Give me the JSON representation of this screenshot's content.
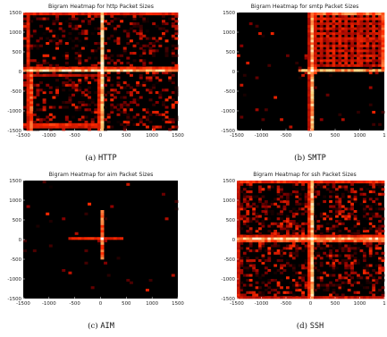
{
  "chart_data": [
    {
      "type": "heatmap",
      "title": "Bigram Heatmap for http Packet Sizes",
      "caption_prefix": "(a)",
      "caption_label": "HTTP",
      "x_ticks": [
        "-1500",
        "-1000",
        "-500",
        "0",
        "500",
        "1000",
        "1500"
      ],
      "y_ticks": [
        "1500",
        "1000",
        "500",
        "0",
        "-500",
        "-1000",
        "-1500"
      ],
      "xlim": [
        -1500,
        1500
      ],
      "ylim": [
        -1500,
        1500
      ],
      "colors": {
        "background": "#000000",
        "low": "#8a0000",
        "mid": "#ff2a00",
        "high": "#ffd27a",
        "peak": "#ffffff"
      },
      "lines": [
        {
          "orient": "v",
          "at": 0,
          "from": -1500,
          "to": 1500,
          "intensity": 0.95
        },
        {
          "orient": "v",
          "at": 40,
          "from": -1500,
          "to": 1500,
          "intensity": 0.7
        },
        {
          "orient": "h",
          "at": 60,
          "from": -1500,
          "to": 1500,
          "intensity": 0.95
        },
        {
          "orient": "h",
          "at": 110,
          "from": -1500,
          "to": 1500,
          "intensity": 0.6
        },
        {
          "orient": "h",
          "at": 1450,
          "from": -1450,
          "to": 1450,
          "intensity": 0.55
        },
        {
          "orient": "v",
          "at": -1420,
          "from": -1450,
          "to": 1450,
          "intensity": 0.55
        },
        {
          "orient": "v",
          "at": -1320,
          "from": -1450,
          "to": 100,
          "intensity": 0.7
        },
        {
          "orient": "h",
          "at": -1350,
          "from": -1450,
          "to": 0,
          "intensity": 0.6
        },
        {
          "orient": "h",
          "at": -1430,
          "from": -1450,
          "to": 0,
          "intensity": 0.5
        },
        {
          "orient": "v",
          "at": -60,
          "from": -1450,
          "to": 100,
          "intensity": 0.55
        },
        {
          "orient": "h",
          "at": -100,
          "from": -1450,
          "to": 0,
          "intensity": 0.4
        }
      ],
      "hotspots": [
        {
          "x": 0,
          "y": 60,
          "intensity": 1.0,
          "r": 70
        },
        {
          "x": 520,
          "y": 60,
          "intensity": 0.55,
          "r": 40
        },
        {
          "x": -60,
          "y": 1450,
          "intensity": 0.5,
          "r": 40
        },
        {
          "x": -1320,
          "y": -1350,
          "intensity": 0.6,
          "r": 40
        }
      ],
      "noise": 0.38
    },
    {
      "type": "heatmap",
      "title": "Bigram Heatmap for smtp Packet Sizes",
      "caption_prefix": "(b)",
      "caption_label": "SMTP",
      "x_ticks": [
        "-1500",
        "-1000",
        "-500",
        "0",
        "500",
        "1000",
        "1"
      ],
      "y_ticks": [
        "1500",
        "1000",
        "500",
        "0",
        "-500",
        "-1000",
        "-1500"
      ],
      "xlim": [
        -1500,
        1500
      ],
      "ylim": [
        -1500,
        1500
      ],
      "colors": {
        "background": "#000000",
        "low": "#8a0000",
        "mid": "#ff2a00",
        "high": "#ffd27a",
        "peak": "#ffffff"
      },
      "lines": [
        {
          "orient": "v",
          "at": 20,
          "from": -1500,
          "to": 1500,
          "intensity": 0.9
        },
        {
          "orient": "v",
          "at": -40,
          "from": -1500,
          "to": 1500,
          "intensity": 0.45
        },
        {
          "orient": "h",
          "at": 60,
          "from": -200,
          "to": 1500,
          "intensity": 0.85
        },
        {
          "orient": "h",
          "at": 1450,
          "from": 0,
          "to": 1500,
          "intensity": 0.75
        },
        {
          "orient": "h",
          "at": 1350,
          "from": 0,
          "to": 1500,
          "intensity": 0.55
        },
        {
          "orient": "v",
          "at": 1450,
          "from": 0,
          "to": 1500,
          "intensity": 0.7
        },
        {
          "orient": "v",
          "at": 120,
          "from": 0,
          "to": 1500,
          "intensity": 0.5
        }
      ],
      "hotspots": [
        {
          "x": 0,
          "y": 60,
          "intensity": 1.0,
          "r": 120
        },
        {
          "x": -60,
          "y": -40,
          "intensity": 0.8,
          "r": 80
        }
      ],
      "grid_blocks": [
        {
          "x0": 100,
          "x1": 1450,
          "y0": 150,
          "y1": 1400,
          "step": 120,
          "intensity": 0.5
        }
      ],
      "noise": 0.04
    },
    {
      "type": "heatmap",
      "title": "Bigram Heatmap for aim Packet Sizes",
      "caption_prefix": "(c)",
      "caption_label": "AIM",
      "x_ticks": [
        "-1500",
        "-1000",
        "-500",
        "0",
        "500",
        "1000",
        "1500"
      ],
      "y_ticks": [
        "1500",
        "1000",
        "500",
        "0",
        "-500",
        "-1000",
        "-1500"
      ],
      "xlim": [
        -1500,
        1500
      ],
      "ylim": [
        -1500,
        1500
      ],
      "colors": {
        "background": "#000000",
        "low": "#8a0000",
        "mid": "#ff2a00",
        "high": "#ffd27a",
        "peak": "#ffffff"
      },
      "lines": [
        {
          "orient": "v",
          "at": 0,
          "from": -500,
          "to": 700,
          "intensity": 0.75
        },
        {
          "orient": "h",
          "at": 40,
          "from": -600,
          "to": 400,
          "intensity": 0.6
        },
        {
          "orient": "v",
          "at": 60,
          "from": -300,
          "to": 350,
          "intensity": 0.5
        }
      ],
      "hotspots": [
        {
          "x": 0,
          "y": 40,
          "intensity": 1.0,
          "r": 90
        },
        {
          "x": 40,
          "y": -60,
          "intensity": 0.7,
          "r": 60
        }
      ],
      "noise": 0.02
    },
    {
      "type": "heatmap",
      "title": "Bigram Heatmap for ssh Packet Sizes",
      "caption_prefix": "(d)",
      "caption_label": "SSH",
      "x_ticks": [
        "-1500",
        "-1000",
        "-500",
        "0",
        "500",
        "1000",
        "1"
      ],
      "y_ticks": [
        "1500",
        "1000",
        "500",
        "0",
        "-500",
        "-1000",
        "-1500"
      ],
      "xlim": [
        -1500,
        1500
      ],
      "ylim": [
        -1500,
        1500
      ],
      "colors": {
        "background": "#000000",
        "low": "#8a0000",
        "mid": "#ff2a00",
        "high": "#ffd27a",
        "peak": "#ffffff"
      },
      "lines": [
        {
          "orient": "v",
          "at": 0,
          "from": -1500,
          "to": 1500,
          "intensity": 0.95
        },
        {
          "orient": "v",
          "at": 60,
          "from": -1500,
          "to": 1500,
          "intensity": 0.75
        },
        {
          "orient": "v",
          "at": -60,
          "from": -1500,
          "to": 1500,
          "intensity": 0.6
        },
        {
          "orient": "h",
          "at": 60,
          "from": -1500,
          "to": 1500,
          "intensity": 0.95
        },
        {
          "orient": "h",
          "at": -20,
          "from": -1500,
          "to": 1500,
          "intensity": 0.7
        },
        {
          "orient": "h",
          "at": 120,
          "from": -1500,
          "to": 1500,
          "intensity": 0.55
        },
        {
          "orient": "h",
          "at": 1450,
          "from": -1500,
          "to": 1500,
          "intensity": 0.6
        },
        {
          "orient": "v",
          "at": -1450,
          "from": -1500,
          "to": 1500,
          "intensity": 0.45
        },
        {
          "orient": "h",
          "at": -1450,
          "from": -1500,
          "to": 1500,
          "intensity": 0.45
        }
      ],
      "hotspots": [
        {
          "x": 0,
          "y": 60,
          "intensity": 1.0,
          "r": 120
        },
        {
          "x": -400,
          "y": 400,
          "intensity": 0.55,
          "r": 80
        },
        {
          "x": 400,
          "y": -400,
          "intensity": 0.5,
          "r": 80
        }
      ],
      "noise": 0.55
    }
  ]
}
